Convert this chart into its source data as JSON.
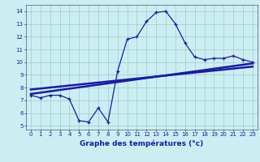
{
  "title": "Graphe des températures (°c)",
  "bg_color": "#cceef2",
  "line_color": "#1a1aaa",
  "grid_color": "#99cccc",
  "xlim": [
    -0.5,
    23.5
  ],
  "ylim": [
    4.7,
    14.5
  ],
  "xticks": [
    0,
    1,
    2,
    3,
    4,
    5,
    6,
    7,
    8,
    9,
    10,
    11,
    12,
    13,
    14,
    15,
    16,
    17,
    18,
    19,
    20,
    21,
    22,
    23
  ],
  "yticks": [
    5,
    6,
    7,
    8,
    9,
    10,
    11,
    12,
    13,
    14
  ],
  "hours": [
    0,
    1,
    2,
    3,
    4,
    5,
    6,
    7,
    8,
    9,
    10,
    11,
    12,
    13,
    14,
    15,
    16,
    17,
    18,
    19,
    20,
    21,
    22,
    23
  ],
  "temps": [
    7.4,
    7.2,
    7.4,
    7.4,
    7.1,
    5.4,
    5.3,
    6.4,
    5.3,
    9.3,
    11.8,
    12.0,
    13.2,
    13.9,
    14.0,
    13.0,
    11.5,
    10.4,
    10.2,
    10.3,
    10.3,
    10.5,
    10.2,
    10.0
  ],
  "trend1_x": [
    0,
    23
  ],
  "trend1_y": [
    7.5,
    9.9
  ],
  "trend2_x": [
    0,
    23
  ],
  "trend2_y": [
    7.85,
    9.65
  ]
}
